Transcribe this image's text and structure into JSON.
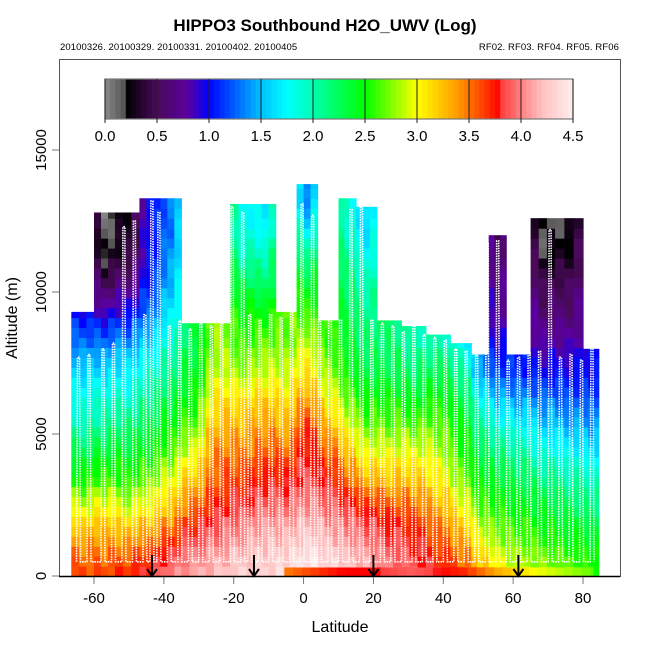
{
  "chart_data": {
    "type": "heatmap",
    "title": "HIPPO3 Southbound H2O_UWV (Log)",
    "subtitle_left": "20100326. 20100329. 20100331. 20100402. 20100405",
    "subtitle_right": "RF02. RF03. RF04. RF05. RF06",
    "xlabel": "Latitude",
    "ylabel": "Altitude (m)",
    "xlim": [
      -70,
      91
    ],
    "ylim": [
      0,
      18200
    ],
    "x_ticks": [
      -60,
      -40,
      -20,
      0,
      20,
      40,
      60,
      80
    ],
    "x_tick_labels": [
      "-60",
      "-40",
      "-20",
      "0",
      "20",
      "40",
      "60",
      "80"
    ],
    "y_ticks": [
      0,
      5000,
      10000,
      15000
    ],
    "y_tick_labels": [
      "0",
      "5000",
      "10000",
      "15000"
    ],
    "grid": false,
    "colorbar": {
      "range": [
        0.0,
        4.5
      ],
      "ticks": [
        0.0,
        0.5,
        1.0,
        1.5,
        2.0,
        2.5,
        3.0,
        3.5,
        4.0,
        4.5
      ],
      "tick_labels": [
        "0.0",
        "0.5",
        "1.0",
        "1.5",
        "2.0",
        "2.5",
        "3.0",
        "3.5",
        "4.0",
        "4.5"
      ],
      "placement": "top-inside",
      "stops": [
        {
          "v": 0.0,
          "c": "#8a8a8a"
        },
        {
          "v": 0.18,
          "c": "#555555"
        },
        {
          "v": 0.2,
          "c": "#000000"
        },
        {
          "v": 0.5,
          "c": "#4a0a5a"
        },
        {
          "v": 0.8,
          "c": "#5a00a0"
        },
        {
          "v": 1.0,
          "c": "#0000ff"
        },
        {
          "v": 1.5,
          "c": "#00c0ff"
        },
        {
          "v": 1.75,
          "c": "#00ffff"
        },
        {
          "v": 2.0,
          "c": "#00ffb0"
        },
        {
          "v": 2.5,
          "c": "#00ff00"
        },
        {
          "v": 3.0,
          "c": "#ffff00"
        },
        {
          "v": 3.4,
          "c": "#ff9900"
        },
        {
          "v": 3.8,
          "c": "#ff0000"
        },
        {
          "v": 3.82,
          "c": "#ff4040"
        },
        {
          "v": 4.0,
          "c": "#ff8080"
        },
        {
          "v": 4.2,
          "c": "#ffc0c0"
        },
        {
          "v": 4.5,
          "c": "#ffeeee"
        }
      ]
    },
    "profile_levels_m": [
      0,
      1000,
      2000,
      3000,
      4000,
      5000,
      6000,
      7000,
      8000,
      9000,
      10000,
      11000,
      12000,
      13000,
      14000
    ],
    "columns": [
      {
        "lat": [
          -66.5,
          -60
        ],
        "top": 9300,
        "values": [
          3.6,
          3.4,
          3.0,
          2.6,
          2.3,
          2.0,
          1.8,
          1.6,
          1.3,
          1.0
        ]
      },
      {
        "lat": [
          -60,
          -54
        ],
        "top": 12800,
        "values": [
          3.6,
          3.4,
          3.1,
          2.7,
          2.4,
          2.1,
          1.9,
          1.6,
          1.3,
          0.9,
          0.5,
          0.2,
          0.1
        ]
      },
      {
        "lat": [
          -54,
          -47
        ],
        "top": 12800,
        "values": [
          3.7,
          3.4,
          3.0,
          2.6,
          2.4,
          2.2,
          1.9,
          1.7,
          1.4,
          1.0,
          0.7,
          0.4,
          0.3
        ]
      },
      {
        "lat": [
          -47,
          -41
        ],
        "top": 13300,
        "values": [
          3.8,
          3.5,
          3.1,
          2.8,
          2.5,
          2.3,
          2.1,
          1.9,
          1.6,
          1.3,
          1.1,
          1.0,
          1.0
        ]
      },
      {
        "lat": [
          -41,
          -35
        ],
        "top": 13300,
        "values": [
          4.0,
          3.7,
          3.3,
          3.0,
          2.7,
          2.5,
          2.3,
          2.1,
          1.9,
          1.7,
          1.5,
          1.4,
          1.3
        ]
      },
      {
        "lat": [
          -35,
          -28
        ],
        "top": 8900,
        "values": [
          4.1,
          3.9,
          3.6,
          3.3,
          3.0,
          2.7,
          2.5,
          2.4,
          2.3
        ]
      },
      {
        "lat": [
          -28,
          -21
        ],
        "top": 8900,
        "values": [
          4.2,
          4.0,
          3.8,
          3.6,
          3.5,
          3.3,
          3.1,
          2.9,
          2.8
        ]
      },
      {
        "lat": [
          -21,
          -14
        ],
        "top": 13100,
        "values": [
          4.3,
          4.1,
          3.9,
          3.7,
          3.5,
          3.3,
          3.1,
          2.8,
          2.6,
          2.5,
          2.3,
          2.0,
          1.8
        ]
      },
      {
        "lat": [
          -14,
          -8
        ],
        "top": 13100,
        "values": [
          4.3,
          4.2,
          4.0,
          3.8,
          3.6,
          3.4,
          3.2,
          2.9,
          2.7,
          2.5,
          2.2,
          2.0,
          1.7
        ]
      },
      {
        "lat": [
          -8,
          -2
        ],
        "top": 9300,
        "values": [
          4.4,
          4.2,
          4.0,
          3.8,
          3.6,
          3.3,
          3.1,
          2.9,
          2.7
        ]
      },
      {
        "lat": [
          -2,
          4
        ],
        "top": 13800,
        "values": [
          4.5,
          4.3,
          4.1,
          3.9,
          3.8,
          3.7,
          3.4,
          3.1,
          2.9,
          2.6,
          2.4,
          2.1,
          1.7,
          1.3
        ]
      },
      {
        "lat": [
          4,
          10
        ],
        "top": 9000,
        "values": [
          4.4,
          4.2,
          4.0,
          3.8,
          3.6,
          3.3,
          3.0,
          2.8,
          2.6
        ]
      },
      {
        "lat": [
          10,
          15
        ],
        "top": 13300,
        "values": [
          4.3,
          4.1,
          3.9,
          3.6,
          3.3,
          3.0,
          2.7,
          2.5,
          2.4,
          2.3,
          2.2,
          2.1,
          1.9
        ]
      },
      {
        "lat": [
          15,
          21
        ],
        "top": 13000,
        "values": [
          4.2,
          4.0,
          3.8,
          3.4,
          3.0,
          2.7,
          2.5,
          2.3,
          2.2,
          2.1,
          2.0,
          1.8,
          1.6
        ]
      },
      {
        "lat": [
          21,
          28
        ],
        "top": 9000,
        "values": [
          4.0,
          3.9,
          3.7,
          3.3,
          3.0,
          2.7,
          2.5,
          2.3,
          2.2
        ]
      },
      {
        "lat": [
          28,
          35
        ],
        "top": 8800,
        "values": [
          3.9,
          3.8,
          3.6,
          3.3,
          3.0,
          2.7,
          2.4,
          2.2,
          2.0
        ]
      },
      {
        "lat": [
          35,
          42
        ],
        "top": 8500,
        "values": [
          3.8,
          3.6,
          3.4,
          3.1,
          2.9,
          2.7,
          2.5,
          2.3,
          2.0
        ]
      },
      {
        "lat": [
          42,
          48
        ],
        "top": 8200,
        "values": [
          3.6,
          3.4,
          3.1,
          2.8,
          2.6,
          2.5,
          2.3,
          2.1,
          1.8
        ]
      },
      {
        "lat": [
          48,
          53
        ],
        "top": 7800,
        "values": [
          3.3,
          3.0,
          2.7,
          2.5,
          2.3,
          2.1,
          1.8,
          1.4
        ]
      },
      {
        "lat": [
          53,
          58
        ],
        "top": 12000,
        "values": [
          3.1,
          2.8,
          2.6,
          2.4,
          2.2,
          1.9,
          1.5,
          1.2,
          0.9,
          0.7,
          0.6,
          0.5
        ]
      },
      {
        "lat": [
          58,
          65
        ],
        "top": 7800,
        "values": [
          2.9,
          2.7,
          2.5,
          2.3,
          2.1,
          1.8,
          1.4,
          1.1
        ]
      },
      {
        "lat": [
          65,
          72
        ],
        "top": 12600,
        "values": [
          2.8,
          2.6,
          2.4,
          2.2,
          1.9,
          1.6,
          1.3,
          1.0,
          0.8,
          0.6,
          0.5,
          0.2,
          0.15
        ]
      },
      {
        "lat": [
          72,
          80
        ],
        "top": 12600,
        "values": [
          2.7,
          2.5,
          2.3,
          2.1,
          1.8,
          1.5,
          1.2,
          1.0,
          0.8,
          0.6,
          0.5,
          0.3,
          0.2
        ]
      },
      {
        "lat": [
          80,
          84.5
        ],
        "top": 8000,
        "values": [
          2.6,
          2.4,
          2.2,
          2.0,
          1.7,
          1.4,
          1.2,
          1.0
        ]
      }
    ],
    "surface_strip": {
      "lat": [
        -5.5,
        81
      ],
      "alt": [
        0,
        300
      ],
      "values_by_lat": [
        [
          -5.5,
          3.5
        ],
        [
          10,
          3.8
        ],
        [
          20,
          3.8
        ],
        [
          30,
          3.9
        ],
        [
          45,
          3.7
        ],
        [
          55,
          3.3
        ],
        [
          65,
          3.0
        ],
        [
          81,
          2.7
        ]
      ]
    },
    "flight_track_lat": [
      -65,
      -62,
      -58,
      -55,
      -52,
      -49,
      -46,
      -44,
      -42,
      -39,
      -36,
      -33,
      -30,
      -27,
      -24,
      -21,
      -18,
      -16,
      -13,
      -10,
      -7,
      -4,
      -1,
      2,
      4,
      7,
      10,
      13,
      16,
      19,
      22,
      25,
      28,
      31,
      34,
      37,
      40,
      43,
      46,
      49,
      52,
      55,
      58,
      61,
      64,
      67,
      70,
      73,
      76,
      79,
      82
    ],
    "flight_track_top": [
      7700,
      7800,
      8000,
      8200,
      12300,
      12500,
      9200,
      13200,
      12800,
      8800,
      9000,
      8700,
      8900,
      8800,
      8900,
      13000,
      12800,
      9200,
      9000,
      9200,
      9100,
      9300,
      13100,
      12700,
      9000,
      13200,
      9000,
      12900,
      13000,
      9000,
      8900,
      8800,
      8600,
      8800,
      8500,
      8400,
      8300,
      8000,
      7900,
      7800,
      11700,
      11800,
      7600,
      7700,
      7900,
      7900,
      12200,
      7700,
      7800,
      7600,
      8000
    ],
    "arrows_lat": [
      -43.4,
      -14.2,
      20.0,
      61.5
    ]
  }
}
